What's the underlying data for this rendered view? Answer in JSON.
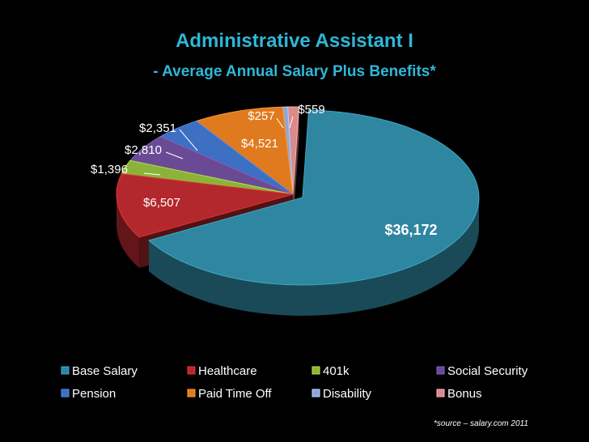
{
  "chart_data": {
    "type": "pie",
    "title": "Administrative Assistant I",
    "subtitle": "- Average Annual Salary Plus Benefits*",
    "source_note": "*source – salary.com 2011",
    "series": [
      {
        "name": "Base Salary",
        "value": 36172,
        "label": "$36,172",
        "color": "#2f86a0"
      },
      {
        "name": "Healthcare",
        "value": 6507,
        "label": "$6,507",
        "color": "#b3282d"
      },
      {
        "name": "401k",
        "value": 1396,
        "label": "$1,396",
        "color": "#8bb33a"
      },
      {
        "name": "Social Security",
        "value": 2810,
        "label": "$2,810",
        "color": "#6a4a94"
      },
      {
        "name": "Pension",
        "value": 2351,
        "label": "$2,351",
        "color": "#3d6fc2"
      },
      {
        "name": "Paid Time Off",
        "value": 4521,
        "label": "$4,521",
        "color": "#e07a1f"
      },
      {
        "name": "Disability",
        "value": 257,
        "label": "$257",
        "color": "#8fa6d6"
      },
      {
        "name": "Bonus",
        "value": 559,
        "label": "$559",
        "color": "#d98a8a"
      }
    ],
    "legend_position": "bottom",
    "exploded_slice": "Base Salary",
    "title_color": "#2fb7d8"
  }
}
